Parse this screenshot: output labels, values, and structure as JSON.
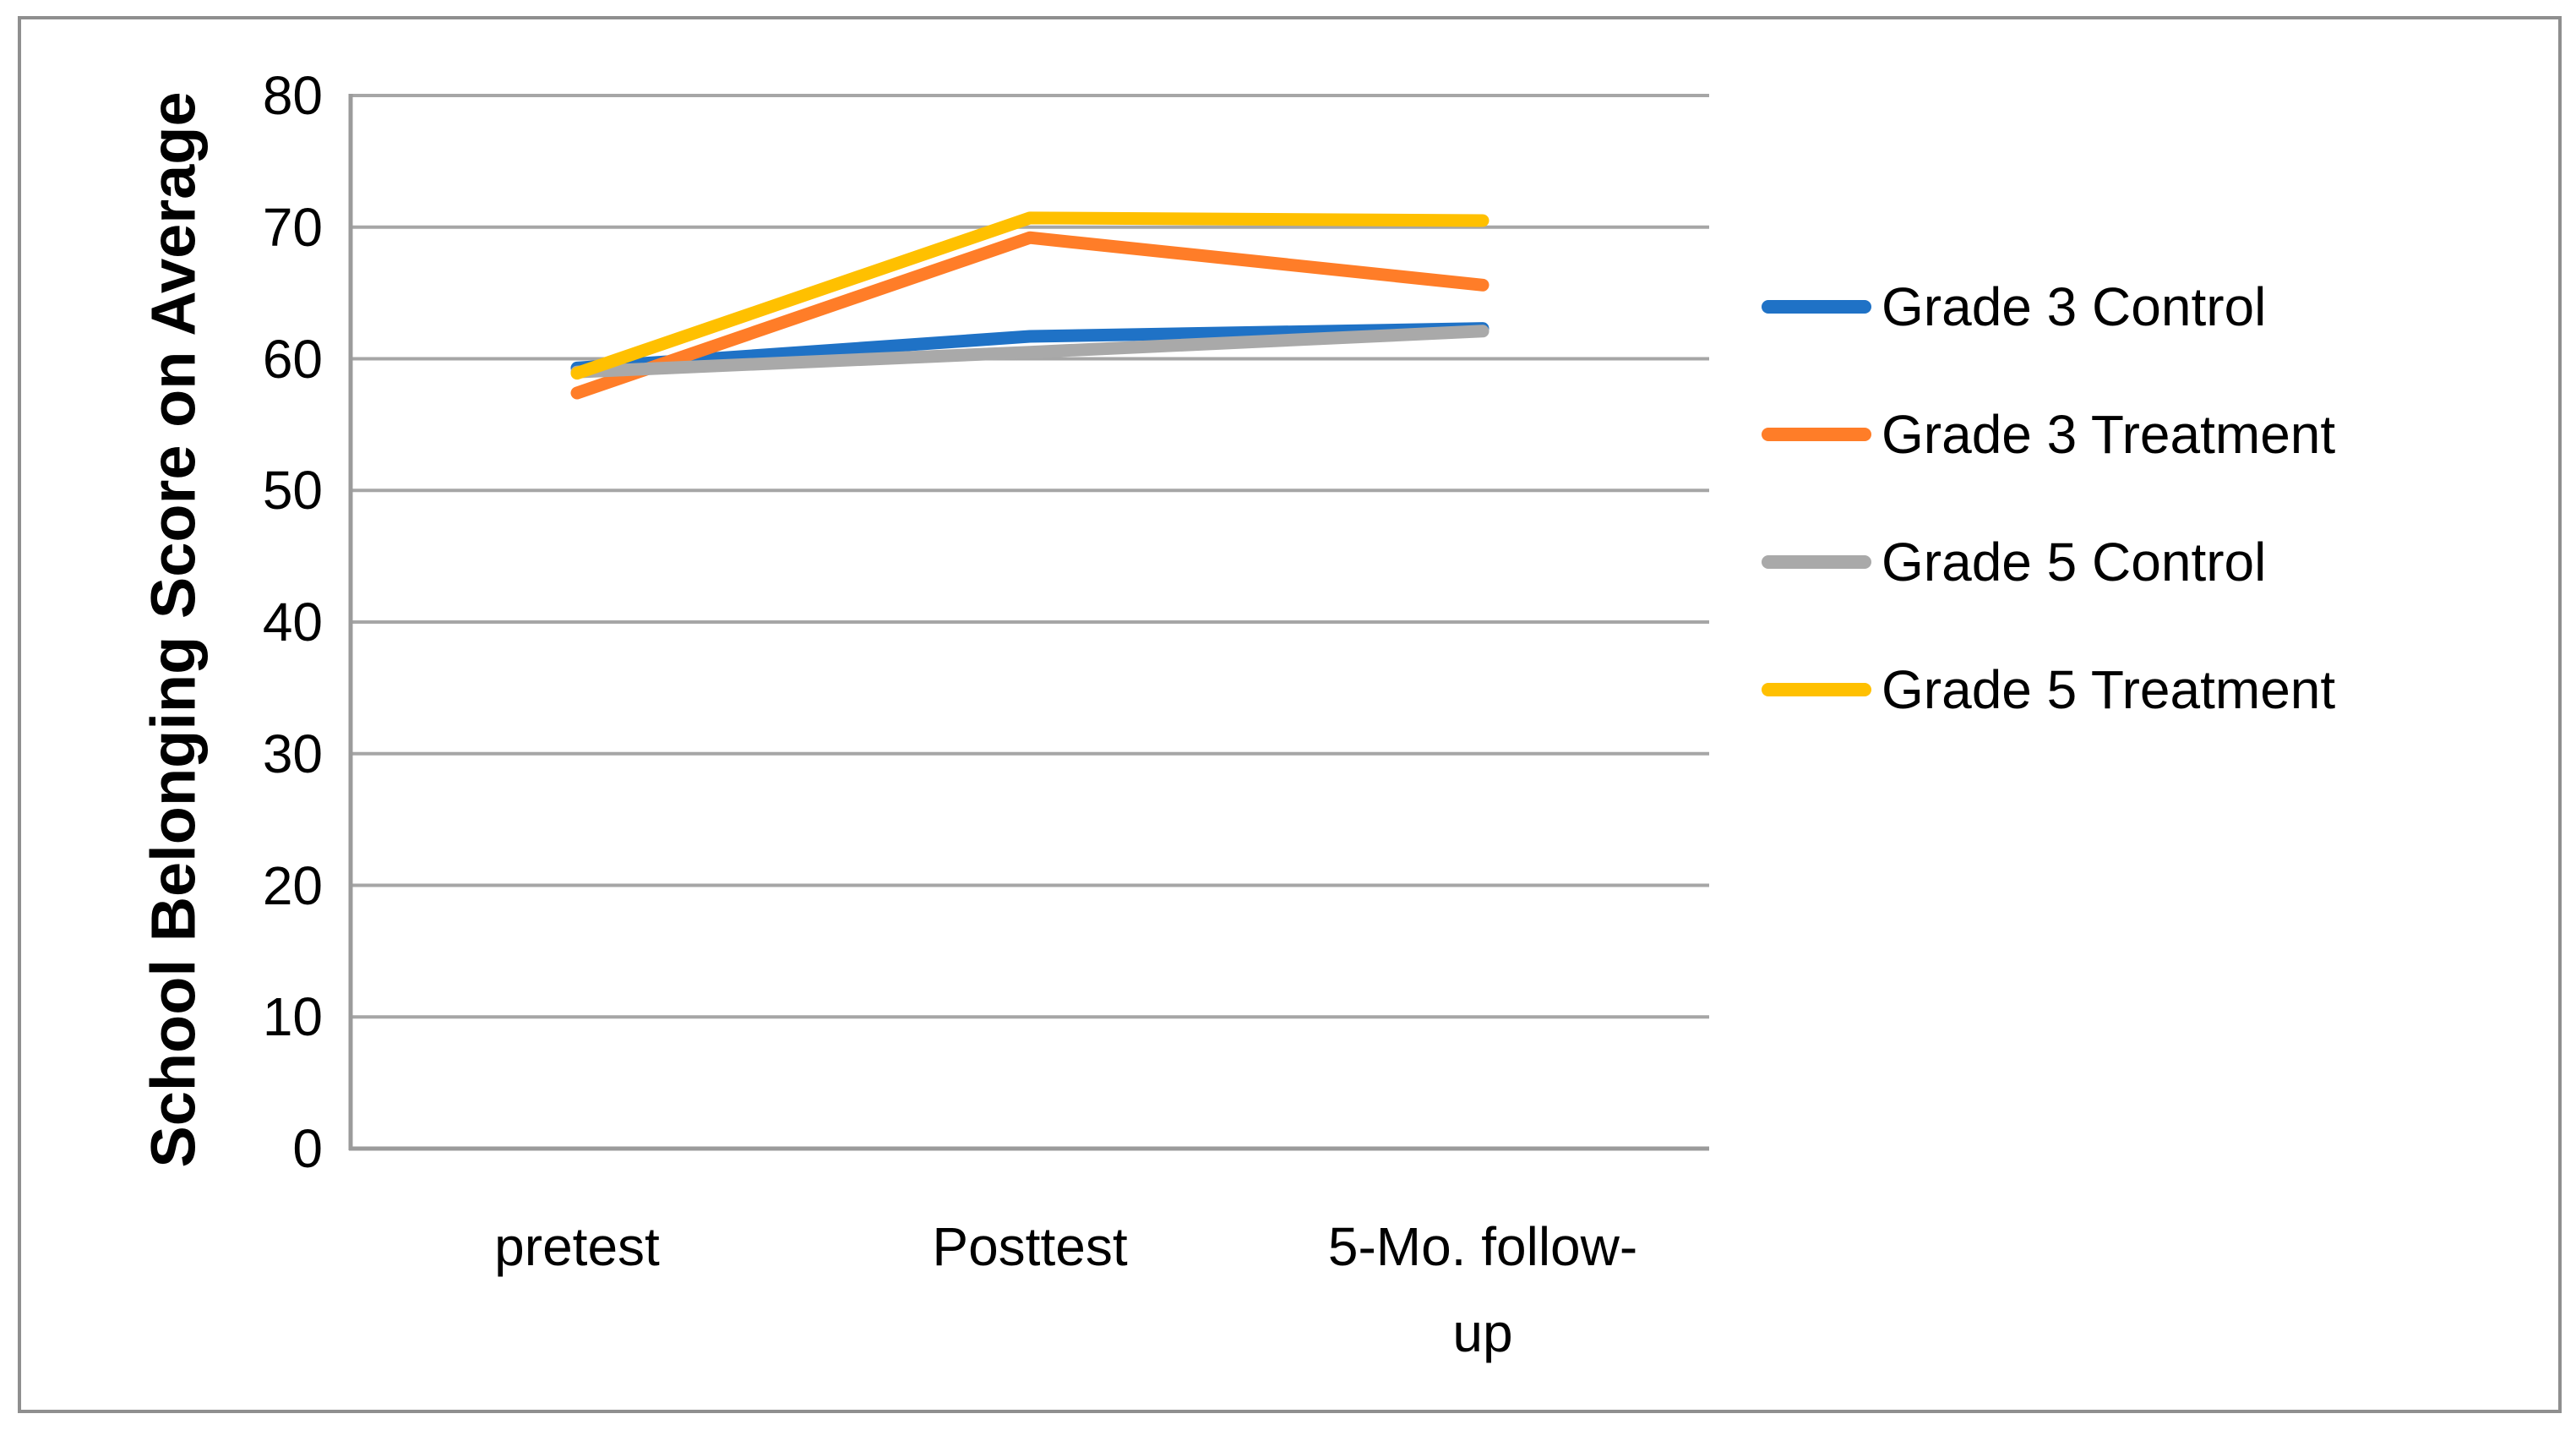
{
  "figure": {
    "border_color": "#8f8f8f",
    "background_color": "#ffffff"
  },
  "chart_data": {
    "type": "line",
    "title": "",
    "xlabel": "",
    "ylabel": "School Belonging Score on Average",
    "categories": [
      "pretest",
      "Posttest",
      "5-Mo. follow-up"
    ],
    "x_tick_display": [
      "pretest",
      "Posttest",
      "5-Mo. follow-\nup"
    ],
    "ylim": [
      0,
      80
    ],
    "yticks": [
      80,
      70,
      60,
      50,
      40,
      30,
      20,
      10,
      0
    ],
    "grid": "horizontal",
    "gridline_color": "#a6a6a6",
    "axis_color": "#9b9b9b",
    "legend_position": "right",
    "series": [
      {
        "name": "Grade 3 Control",
        "color": "#1f72c6",
        "values": [
          59.3,
          61.7,
          62.3
        ]
      },
      {
        "name": "Grade 3 Treatment",
        "color": "#ff7d28",
        "values": [
          57.4,
          69.2,
          65.6
        ]
      },
      {
        "name": "Grade 5 Control",
        "color": "#a9a9a9",
        "values": [
          59.0,
          60.5,
          62.1
        ]
      },
      {
        "name": "Grade 5 Treatment",
        "color": "#ffc000",
        "values": [
          58.9,
          70.7,
          70.5
        ]
      }
    ]
  }
}
